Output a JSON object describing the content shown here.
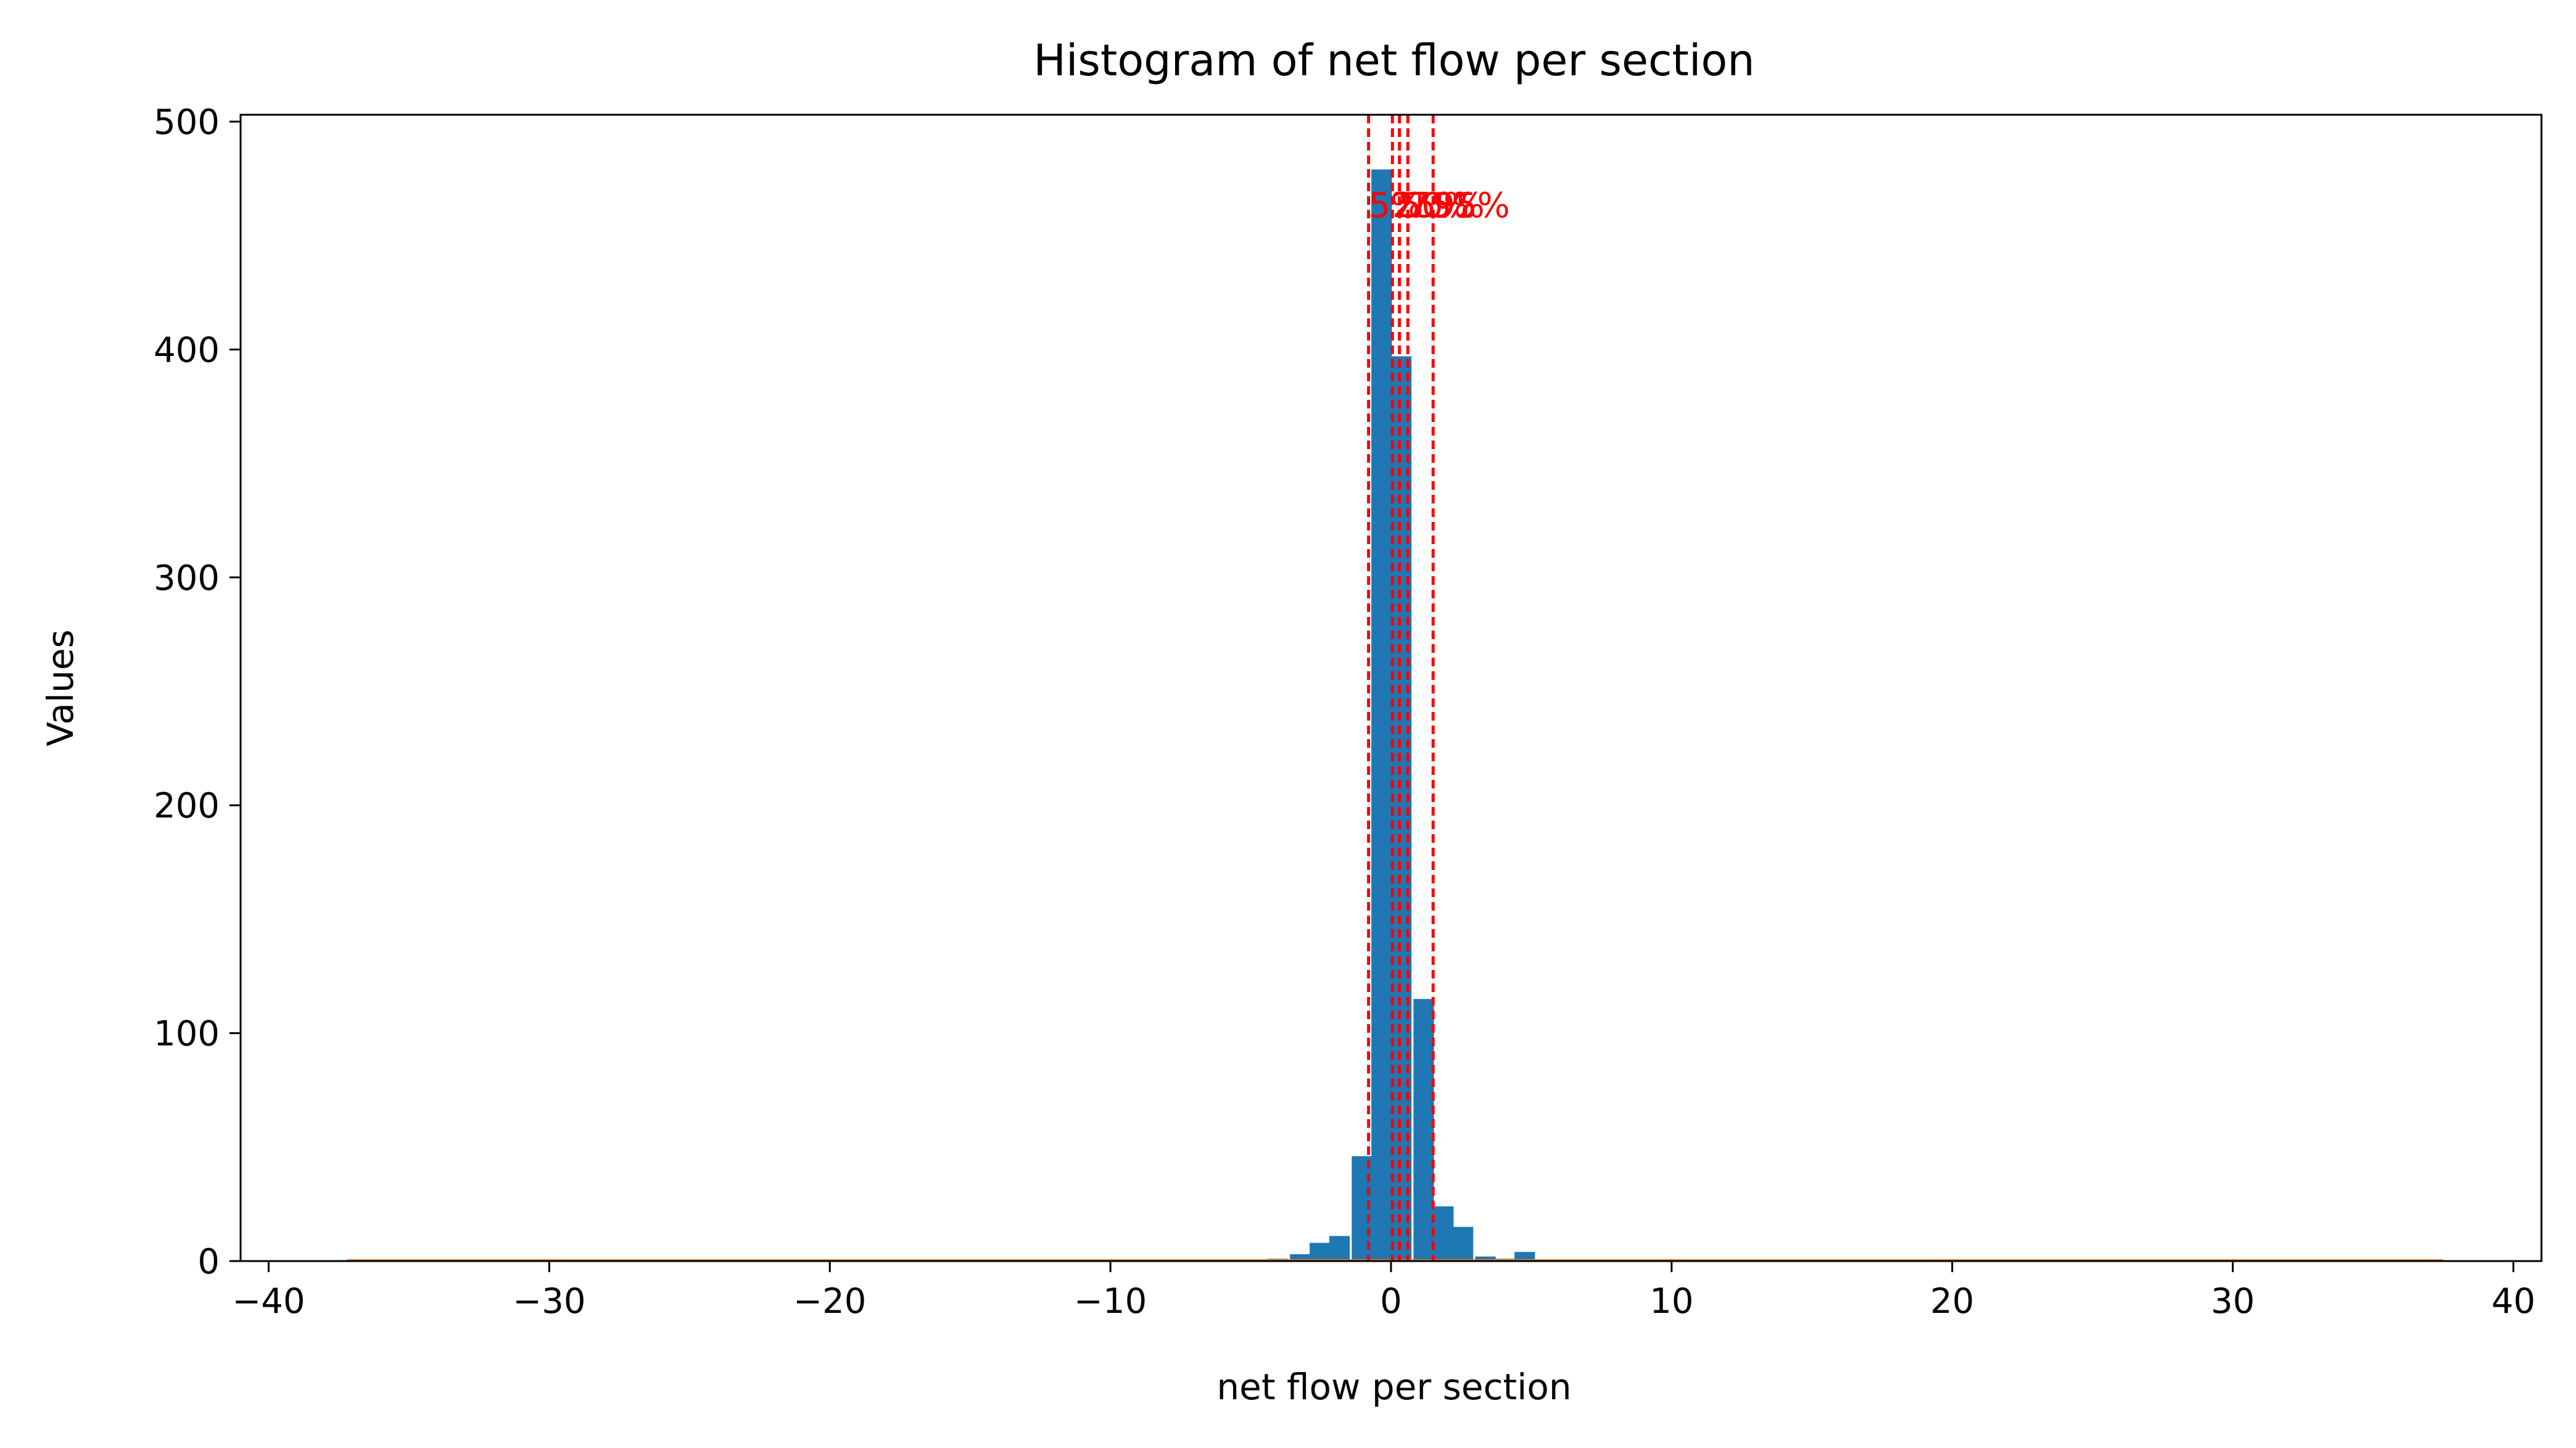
{
  "chart_data": {
    "type": "bar",
    "title": "Histogram of net flow per section",
    "xlabel": "net flow per section",
    "ylabel": "Values",
    "xlim": [
      -41,
      41
    ],
    "ylim": [
      0,
      503
    ],
    "x_ticks": [
      {
        "value": -40,
        "label": "−40"
      },
      {
        "value": -30,
        "label": "−30"
      },
      {
        "value": -20,
        "label": "−20"
      },
      {
        "value": -10,
        "label": "−10"
      },
      {
        "value": 0,
        "label": "0"
      },
      {
        "value": 10,
        "label": "10"
      },
      {
        "value": 20,
        "label": "20"
      },
      {
        "value": 30,
        "label": "30"
      },
      {
        "value": 40,
        "label": "40"
      }
    ],
    "y_ticks": [
      {
        "value": 0,
        "label": "0"
      },
      {
        "value": 100,
        "label": "100"
      },
      {
        "value": 200,
        "label": "200"
      },
      {
        "value": 300,
        "label": "300"
      },
      {
        "value": 400,
        "label": "400"
      },
      {
        "value": 500,
        "label": "500"
      }
    ],
    "grid": false,
    "series": [
      {
        "color": "#1f77b4",
        "bin_width": 0.73,
        "bins": [
          {
            "x0": -4.4,
            "count": 1
          },
          {
            "x0": -3.6,
            "count": 3
          },
          {
            "x0": -2.9,
            "count": 8
          },
          {
            "x0": -2.2,
            "count": 11
          },
          {
            "x0": -1.4,
            "count": 46
          },
          {
            "x0": -0.7,
            "count": 479
          },
          {
            "x0": 0.0,
            "count": 397
          },
          {
            "x0": 0.8,
            "count": 115
          },
          {
            "x0": 1.5,
            "count": 24
          },
          {
            "x0": 2.2,
            "count": 15
          },
          {
            "x0": 3.0,
            "count": 2
          },
          {
            "x0": 3.7,
            "count": 1
          },
          {
            "x0": 4.4,
            "count": 4
          }
        ]
      },
      {
        "color": "#ff7f0e",
        "x_range": [
          -37.2,
          37.5
        ],
        "count": 0.8
      }
    ],
    "percentile_lines": {
      "color": "#ff0000",
      "style": "dashed",
      "lines": [
        {
          "x": -0.8,
          "label": "5%"
        },
        {
          "x": 0.05,
          "label": "25%"
        },
        {
          "x": 0.3,
          "label": "50%"
        },
        {
          "x": 0.6,
          "label": "75%"
        },
        {
          "x": 1.5,
          "label": "95%"
        }
      ],
      "label_y": 458
    }
  }
}
